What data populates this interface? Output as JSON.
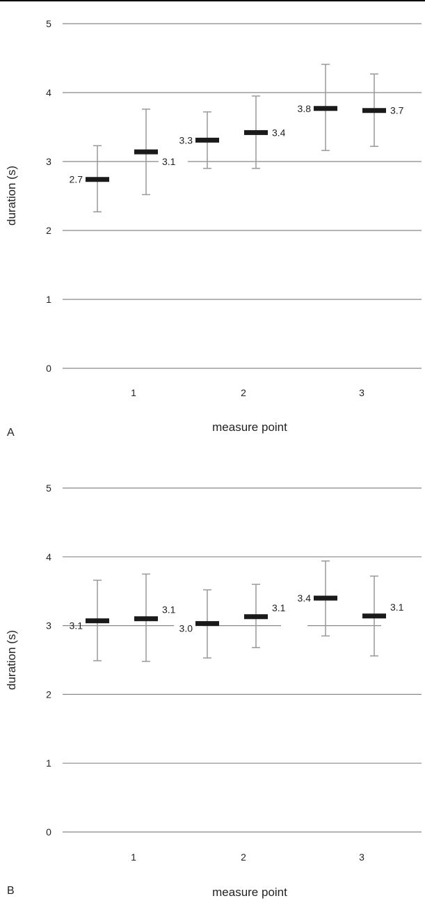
{
  "chart_data": [
    {
      "type": "scatter",
      "panel_label": "A",
      "xlabel": "measure point",
      "ylabel": "duration (s)",
      "ylim": [
        0,
        5
      ],
      "y_ticks": [
        "0",
        "1",
        "2",
        "3",
        "4",
        "5"
      ],
      "categories": [
        "1",
        "2",
        "3"
      ],
      "grid": true,
      "points": [
        {
          "category": "1",
          "mean": 2.74,
          "lower": 2.27,
          "upper": 3.23,
          "label": "2.7",
          "label_side": "left"
        },
        {
          "category": "1",
          "mean": 3.14,
          "lower": 2.52,
          "upper": 3.76,
          "label": "3.1",
          "label_side": "right"
        },
        {
          "category": "2",
          "mean": 3.31,
          "lower": 2.9,
          "upper": 3.72,
          "label": "3.3",
          "label_side": "left"
        },
        {
          "category": "2",
          "mean": 3.42,
          "lower": 2.9,
          "upper": 3.95,
          "label": "3.4",
          "label_side": "right"
        },
        {
          "category": "3",
          "mean": 3.77,
          "lower": 3.16,
          "upper": 4.41,
          "label": "3.8",
          "label_side": "left"
        },
        {
          "category": "3",
          "mean": 3.74,
          "lower": 3.22,
          "upper": 4.27,
          "label": "3.7",
          "label_side": "right"
        }
      ],
      "colors": {
        "mean": "#1a1a1a",
        "error_bar": "#999999",
        "grid": "#888888"
      }
    },
    {
      "type": "scatter",
      "panel_label": "B",
      "xlabel": "measure point",
      "ylabel": "duration (s)",
      "ylim": [
        0,
        5
      ],
      "y_ticks": [
        "0",
        "1",
        "2",
        "3",
        "4",
        "5"
      ],
      "categories": [
        "1",
        "2",
        "3"
      ],
      "grid": true,
      "points": [
        {
          "category": "1",
          "mean": 3.07,
          "lower": 2.49,
          "upper": 3.66,
          "label": "3.1",
          "label_side": "left"
        },
        {
          "category": "1",
          "mean": 3.1,
          "lower": 2.48,
          "upper": 3.75,
          "label": "3.1",
          "label_side": "right"
        },
        {
          "category": "2",
          "mean": 3.03,
          "lower": 2.53,
          "upper": 3.52,
          "label": "3.0",
          "label_side": "left"
        },
        {
          "category": "2",
          "mean": 3.13,
          "lower": 2.68,
          "upper": 3.6,
          "label": "3.1",
          "label_side": "right"
        },
        {
          "category": "3",
          "mean": 3.4,
          "lower": 2.85,
          "upper": 3.94,
          "label": "3.4",
          "label_side": "left"
        },
        {
          "category": "3",
          "mean": 3.14,
          "lower": 2.56,
          "upper": 3.72,
          "label": "3.1",
          "label_side": "right"
        }
      ],
      "colors": {
        "mean": "#1a1a1a",
        "error_bar": "#999999",
        "grid": "#888888"
      }
    }
  ]
}
